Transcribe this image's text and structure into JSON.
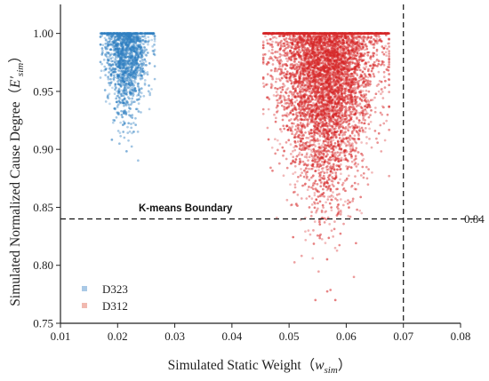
{
  "chart_data": {
    "type": "scatter",
    "title": "",
    "xlabel_main": "Simulated Static Weight（",
    "xlabel_var": "w",
    "xlabel_sub": "sim",
    "xlabel_close": "）",
    "ylabel_main": "Simulated Normalized Cause Degree（",
    "ylabel_var": "E′",
    "ylabel_sub": "sim",
    "ylabel_close": "）",
    "xlim": [
      0.01,
      0.08
    ],
    "ylim": [
      0.75,
      1.025
    ],
    "x_ticks": [
      "0.01",
      "0.02",
      "0.03",
      "0.04",
      "0.05",
      "0.06",
      "0.07",
      "0.08"
    ],
    "y_ticks": [
      "0.75",
      "0.80",
      "0.85",
      "0.90",
      "0.95",
      "1.00"
    ],
    "x_tick_values": [
      0.01,
      0.02,
      0.03,
      0.04,
      0.05,
      0.06,
      0.07,
      0.08
    ],
    "y_tick_values": [
      0.75,
      0.8,
      0.85,
      0.9,
      0.95,
      1.0
    ],
    "grid": false,
    "legend_position": "bottom-left",
    "series": [
      {
        "name": "D323",
        "color": "#2f7fc1",
        "x_range": [
          0.017,
          0.0265
        ],
        "x_center": 0.0215,
        "y_min": 0.88,
        "y_max": 1.0,
        "n_points": 1500
      },
      {
        "name": "D312",
        "color": "#d62728",
        "x_range": [
          0.0455,
          0.0675
        ],
        "x_center": 0.0565,
        "y_min": 0.77,
        "y_max": 1.0,
        "n_points": 5500
      }
    ],
    "annotations": {
      "boundary_label": "K-means Boundary",
      "boundary_y": 0.84,
      "boundary_value_label": "0.84",
      "vertical_line_x": 0.07
    }
  }
}
